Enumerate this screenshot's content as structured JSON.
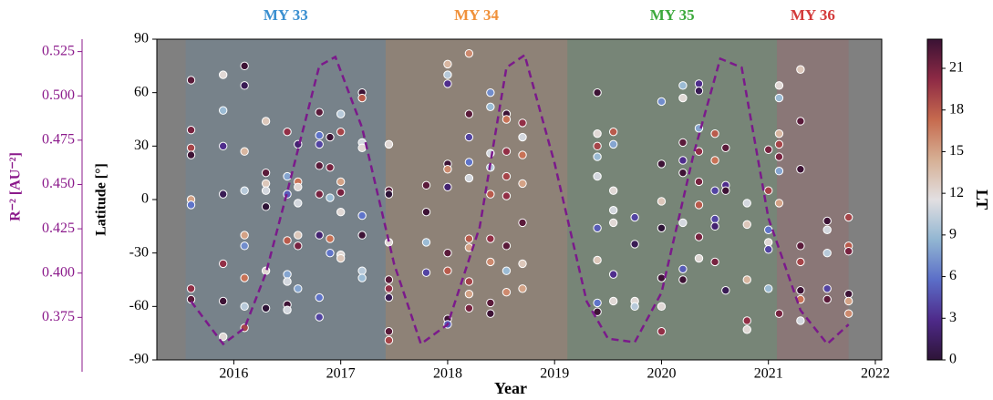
{
  "chart_data": {
    "type": "scatter",
    "xlabel": "Year",
    "ylabel": "Latitude [°]",
    "y2label": "R⁻² [AU⁻²]",
    "colorbar_label": "LT",
    "xlim": [
      2015.28,
      2022.06
    ],
    "xticks": [
      2016,
      2017,
      2018,
      2019,
      2020,
      2021,
      2022
    ],
    "ylim": [
      -90,
      90
    ],
    "yticks": [
      -90,
      -60,
      -30,
      0,
      30,
      60,
      90
    ],
    "y2lim": [
      0.351,
      0.532
    ],
    "y2ticks": [
      0.375,
      {
        "value": 0.4,
        "label": "0.400"
      },
      0.425,
      {
        "value": 0.45,
        "label": "0.450"
      },
      0.475,
      {
        "value": 0.5,
        "label": "0.500"
      },
      0.525
    ],
    "clim": [
      0,
      23.1
    ],
    "cticks": [
      0,
      3,
      6,
      9,
      12,
      15,
      18,
      21
    ],
    "colormap": [
      "#2e1437",
      "#4e2a8a",
      "#5b6ec8",
      "#92b6d2",
      "#e2dfe1",
      "#d6af94",
      "#c66a4e",
      "#8e2a45",
      "#3a1234"
    ],
    "background": "#808080",
    "seasons": [
      {
        "label": "MY 33",
        "start": 2015.55,
        "end": 2017.42,
        "color": "#3a8fd0"
      },
      {
        "label": "MY 34",
        "start": 2017.42,
        "end": 2019.12,
        "color": "#f0913a"
      },
      {
        "label": "MY 35",
        "start": 2019.12,
        "end": 2021.08,
        "color": "#3ca93c"
      },
      {
        "label": "MY 36",
        "start": 2021.08,
        "end": 2021.75,
        "color": "#d33a3a"
      }
    ],
    "x": [
      2015.6,
      2015.9,
      2016.1,
      2016.3,
      2016.5,
      2016.6,
      2016.8,
      2016.9,
      2017.0,
      2017.2,
      2017.45,
      2017.8,
      2018.0,
      2018.2,
      2018.4,
      2018.55,
      2018.7,
      2019.4,
      2019.55,
      2019.75,
      2020.0,
      2020.2,
      2020.35,
      2020.5,
      2020.6,
      2020.8,
      2021.0,
      2021.1,
      2021.3,
      2021.55,
      2021.75
    ],
    "y": [
      [
        67,
        39,
        29,
        25,
        0,
        -3,
        -50,
        -56
      ],
      [
        70,
        50,
        30,
        3,
        -36,
        -57,
        -77
      ],
      [
        75,
        64,
        27,
        5,
        -20,
        -26,
        -44,
        -60,
        -72
      ],
      [
        44,
        15,
        9,
        5,
        -4,
        -40,
        -61
      ],
      [
        38,
        13,
        3,
        -23,
        -42,
        -46,
        -59,
        -62
      ],
      [
        31,
        10,
        7,
        -2,
        -20,
        -26,
        -50
      ],
      [
        49,
        36,
        31,
        19,
        3,
        -20,
        -55,
        -66
      ],
      [
        35,
        18,
        1,
        -22,
        -30
      ],
      [
        48,
        38,
        10,
        4,
        -7,
        -31,
        -33
      ],
      [
        60,
        57,
        32,
        29,
        -9,
        -20,
        -40,
        -44
      ],
      [
        31,
        5,
        3,
        -24,
        -45,
        -50,
        -55,
        -74,
        -79
      ],
      [
        8,
        -7,
        -24,
        -41
      ],
      [
        76,
        70,
        65,
        20,
        17,
        7,
        -30,
        -40,
        -67,
        -70
      ],
      [
        82,
        48,
        35,
        21,
        12,
        -22,
        -27,
        -46,
        -53,
        -61
      ],
      [
        60,
        52,
        26,
        18,
        3,
        -22,
        -35,
        -58,
        -64
      ],
      [
        48,
        45,
        27,
        13,
        2,
        -26,
        -40,
        -52
      ],
      [
        43,
        35,
        25,
        9,
        -13,
        -36,
        -50
      ],
      [
        60,
        37,
        30,
        24,
        13,
        -16,
        -34,
        -58,
        -63
      ],
      [
        38,
        31,
        5,
        -6,
        -13,
        -42,
        -57
      ],
      [
        -10,
        -25,
        -57,
        -60
      ],
      [
        55,
        20,
        -1,
        -16,
        -44,
        -60,
        -74
      ],
      [
        64,
        57,
        32,
        15,
        22,
        -13,
        -39,
        -45
      ],
      [
        65,
        61,
        40,
        27,
        10,
        -3,
        -21,
        -33
      ],
      [
        37,
        22,
        5,
        -11,
        -15,
        -35
      ],
      [
        29,
        8,
        5,
        -51
      ],
      [
        -2,
        -14,
        -45,
        -68,
        -73
      ],
      [
        28,
        5,
        -17,
        -24,
        -28,
        -50
      ],
      [
        64,
        57,
        37,
        31,
        24,
        16,
        -2,
        -64
      ],
      [
        73,
        44,
        17,
        -26,
        -35,
        -51,
        -56,
        -68
      ],
      [
        -12,
        -17,
        -30,
        -50,
        -56
      ],
      [
        -10,
        -26,
        -29,
        -53,
        -57,
        -64
      ]
    ],
    "lt": [
      [
        22,
        21,
        19,
        23,
        15,
        6,
        20,
        22
      ],
      [
        12,
        9,
        3,
        1,
        20,
        23,
        12
      ],
      [
        23,
        1,
        14,
        10,
        15,
        7,
        17,
        10,
        19
      ],
      [
        13,
        22,
        13,
        11,
        0,
        12,
        0
      ],
      [
        20,
        8,
        5,
        18,
        8,
        11,
        23,
        11
      ],
      [
        2,
        17,
        12,
        11,
        13,
        21,
        8
      ],
      [
        22,
        6,
        4,
        22,
        21,
        2,
        6,
        4
      ],
      [
        23,
        21,
        9,
        17,
        6
      ],
      [
        10,
        19,
        15,
        21,
        12,
        12,
        13
      ],
      [
        23,
        18,
        11,
        12,
        6,
        23,
        10,
        9
      ],
      [
        12,
        22,
        0,
        12,
        22,
        20,
        1,
        22,
        19
      ],
      [
        22,
        23,
        9,
        4
      ],
      [
        14,
        10,
        3,
        23,
        16,
        2,
        22,
        18,
        23,
        5
      ],
      [
        16,
        22,
        4,
        6,
        11,
        18,
        15,
        19,
        15,
        21
      ],
      [
        7,
        9,
        11,
        10,
        18,
        20,
        16,
        22,
        23
      ],
      [
        23,
        17,
        20,
        19,
        20,
        22,
        9,
        16
      ],
      [
        20,
        11,
        17,
        15,
        22,
        13,
        15
      ],
      [
        23,
        12,
        19,
        9,
        11,
        5,
        13,
        6,
        23
      ],
      [
        18,
        8,
        12,
        11,
        12,
        3,
        12
      ],
      [
        4,
        1,
        12,
        10
      ],
      [
        7,
        23,
        13,
        0,
        23,
        12,
        20
      ],
      [
        9,
        12,
        22,
        23,
        3,
        11,
        5,
        23
      ],
      [
        3,
        1,
        8,
        20,
        21,
        18,
        21,
        12
      ],
      [
        18,
        17,
        4,
        4,
        2,
        21
      ],
      [
        22,
        3,
        23,
        1
      ],
      [
        11,
        13,
        14,
        20,
        12
      ],
      [
        21,
        19,
        6,
        12,
        4,
        9
      ],
      [
        12,
        9,
        14,
        19,
        21,
        8,
        15,
        21
      ],
      [
        13,
        22,
        23,
        22,
        19,
        23,
        17,
        11
      ],
      [
        23,
        11,
        10,
        4,
        22
      ],
      [
        19,
        18,
        21,
        23,
        15,
        16
      ]
    ],
    "series": [
      {
        "axis": "y2",
        "color": "#7b1a8b",
        "dash": true,
        "x": [
          2015.6,
          2015.9,
          2016.1,
          2016.3,
          2016.5,
          2016.8,
          2016.95,
          2017.2,
          2017.5,
          2017.75,
          2018.0,
          2018.3,
          2018.55,
          2018.72,
          2019.0,
          2019.3,
          2019.5,
          2019.75,
          2020.0,
          2020.3,
          2020.55,
          2020.75,
          2021.0,
          2021.3,
          2021.55,
          2021.75
        ],
        "values": [
          0.384,
          0.36,
          0.369,
          0.4,
          0.446,
          0.517,
          0.522,
          0.482,
          0.405,
          0.36,
          0.371,
          0.426,
          0.516,
          0.523,
          0.462,
          0.384,
          0.363,
          0.361,
          0.389,
          0.467,
          0.521,
          0.516,
          0.431,
          0.379,
          0.36,
          0.371
        ]
      }
    ]
  }
}
